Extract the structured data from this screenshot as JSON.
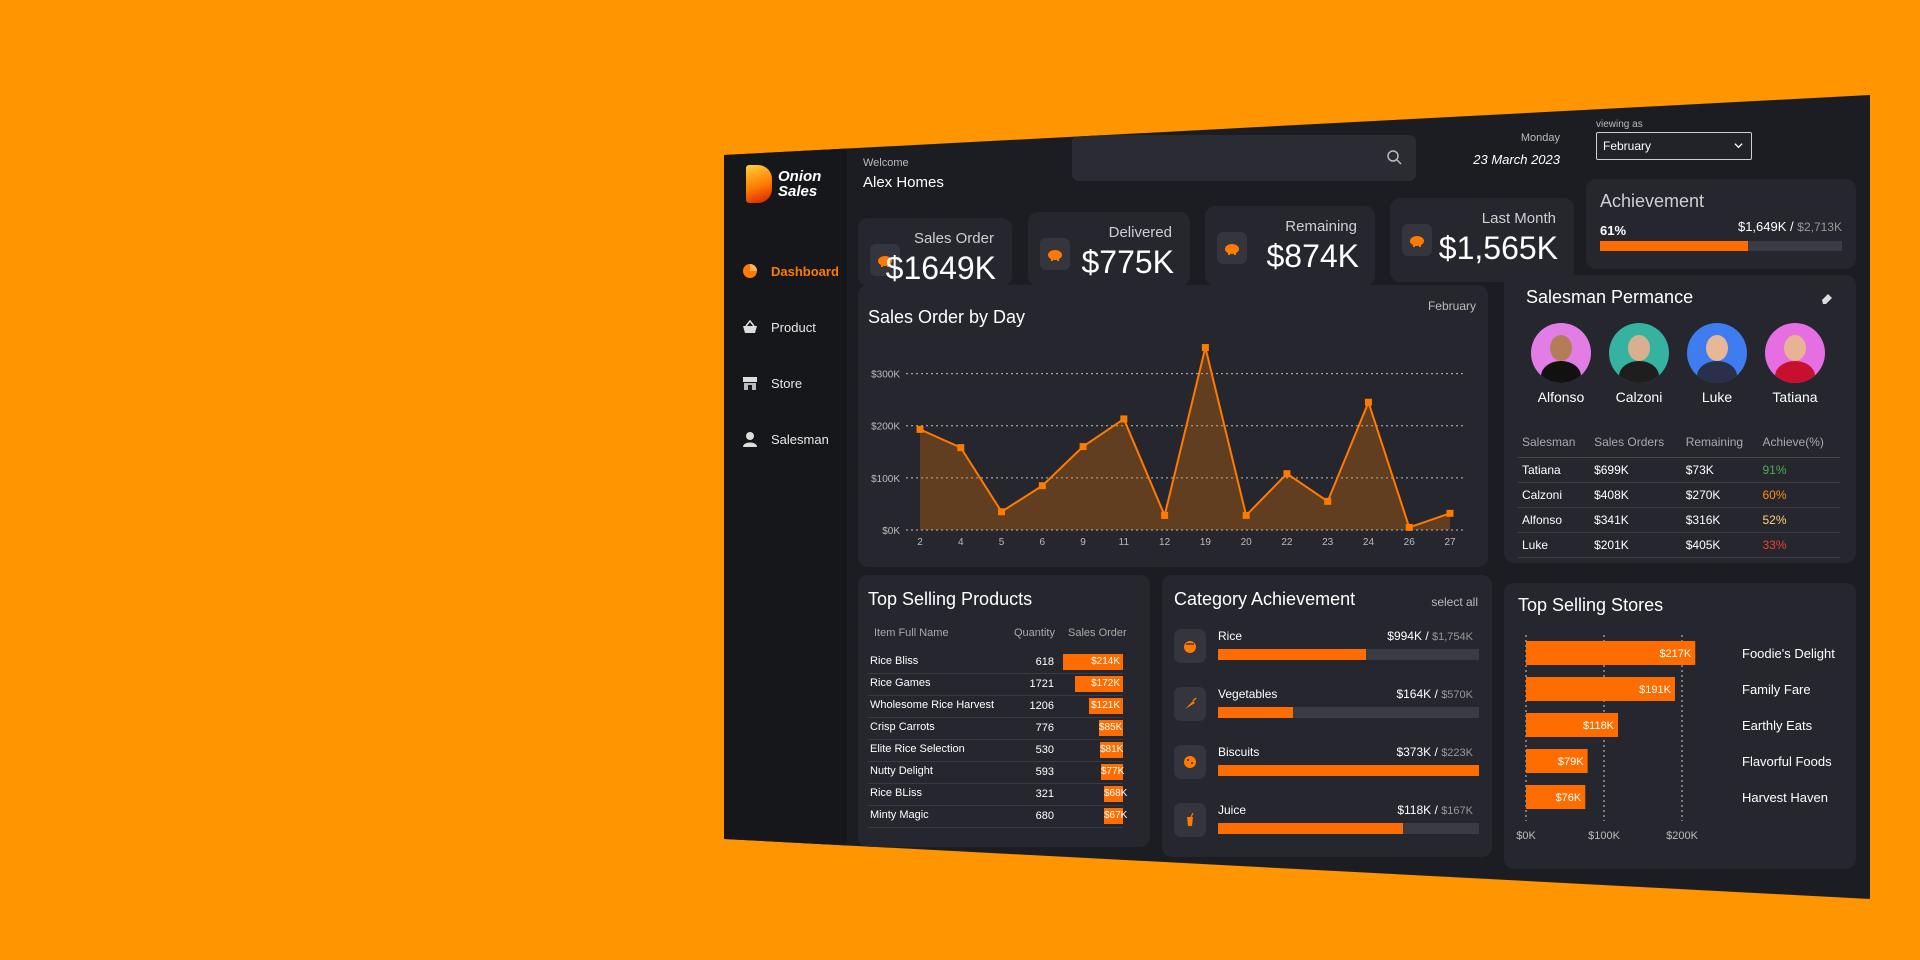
{
  "app": {
    "logo_line1": "Onion",
    "logo_line2": "Sales"
  },
  "nav": [
    {
      "label": "Dashboard",
      "icon": "pie-chart-icon"
    },
    {
      "label": "Product",
      "icon": "basket-icon"
    },
    {
      "label": "Store",
      "icon": "store-icon"
    },
    {
      "label": "Salesman",
      "icon": "person-icon"
    }
  ],
  "header": {
    "welcome": "Welcome",
    "user": "Alex Homes",
    "day": "Monday",
    "date": "23 March 2023",
    "viewing_label": "viewing as",
    "month": "February"
  },
  "kpis": [
    {
      "label": "Sales Order",
      "value": "$1649K"
    },
    {
      "label": "Delivered",
      "value": "$775K"
    },
    {
      "label": "Remaining",
      "value": "$874K"
    },
    {
      "label": "Last Month",
      "value": "$1,565K"
    }
  ],
  "achievement": {
    "title": "Achievement",
    "pct": "61%",
    "progress": 0.61,
    "value": "$1,649K",
    "sep": "/",
    "target": "$2,713K"
  },
  "sales_chart_card": {
    "title": "Sales Order by Day",
    "month": "February"
  },
  "chart_data": {
    "type": "area",
    "title": "Sales Order by Day",
    "x": [
      "2",
      "4",
      "5",
      "6",
      "9",
      "11",
      "12",
      "19",
      "20",
      "22",
      "23",
      "24",
      "26",
      "27"
    ],
    "values": [
      193,
      158,
      35,
      85,
      160,
      213,
      28,
      350,
      28,
      108,
      55,
      245,
      5,
      32
    ],
    "y_ticks": [
      "$0K",
      "$100K",
      "$200K",
      "$300K"
    ],
    "ylim": [
      0,
      300
    ],
    "grid": true,
    "color": "#ff7a00"
  },
  "salesman": {
    "title": "Salesman Permance",
    "people": [
      {
        "name": "Alfonso",
        "bg": "#e37de6",
        "skin": "#b47d5a",
        "shirt": "#111111"
      },
      {
        "name": "Calzoni",
        "bg": "#36b3a0",
        "skin": "#d9b08f",
        "shirt": "#1e1e1e"
      },
      {
        "name": "Luke",
        "bg": "#3e7cf0",
        "skin": "#e6b896",
        "shirt": "#2a2f4a"
      },
      {
        "name": "Tatiana",
        "bg": "#e56ee3",
        "skin": "#e8b394",
        "shirt": "#c8102e"
      }
    ],
    "headers": [
      "Salesman",
      "Sales Orders",
      "Remaining",
      "Achieve(%)"
    ],
    "rows": [
      {
        "name": "Tatiana",
        "orders": "$699K",
        "remaining": "$73K",
        "pct": "91%",
        "color": "#4caf50"
      },
      {
        "name": "Calzoni",
        "orders": "$408K",
        "remaining": "$270K",
        "pct": "60%",
        "color": "#ff8c1a"
      },
      {
        "name": "Alfonso",
        "orders": "$341K",
        "remaining": "$316K",
        "pct": "52%",
        "color": "#ffd27a"
      },
      {
        "name": "Luke",
        "orders": "$201K",
        "remaining": "$405K",
        "pct": "33%",
        "color": "#e8452c"
      }
    ]
  },
  "top_products": {
    "title": "Top Selling Products",
    "headers": [
      "Item Full Name",
      "Quantity",
      "Sales Order"
    ],
    "rows": [
      {
        "name": "Rice Bliss",
        "qty": "618",
        "sales": "$214K",
        "value": 214
      },
      {
        "name": "Rice Games",
        "qty": "1721",
        "sales": "$172K",
        "value": 172
      },
      {
        "name": "Wholesome Rice Harvest",
        "qty": "1206",
        "sales": "$121K",
        "value": 121
      },
      {
        "name": "Crisp Carrots",
        "qty": "776",
        "sales": "$85K",
        "value": 85
      },
      {
        "name": "Elite Rice Selection",
        "qty": "530",
        "sales": "$81K",
        "value": 81
      },
      {
        "name": "Nutty Delight",
        "qty": "593",
        "sales": "$77K",
        "value": 77
      },
      {
        "name": "Rice BLiss",
        "qty": "321",
        "sales": "$68K",
        "value": 68
      },
      {
        "name": "Minty Magic",
        "qty": "680",
        "sales": "$67K",
        "value": 67
      }
    ]
  },
  "category": {
    "title": "Category Achievement",
    "select_all": "select all",
    "rows": [
      {
        "name": "Rice",
        "value": "$994K",
        "sep": "/",
        "target": "$1,754K",
        "progress": 0.567,
        "icon": "rice-icon"
      },
      {
        "name": "Vegetables",
        "value": "$164K",
        "sep": "/",
        "target": "$570K",
        "progress": 0.288,
        "icon": "carrot-icon"
      },
      {
        "name": "Biscuits",
        "value": "$373K",
        "sep": "/",
        "target": "$223K",
        "progress": 1.0,
        "icon": "cookie-icon"
      },
      {
        "name": "Juice",
        "value": "$118K",
        "sep": "/",
        "target": "$167K",
        "progress": 0.707,
        "icon": "juice-icon"
      }
    ]
  },
  "stores": {
    "title": "Top Selling Stores",
    "ticks": [
      "$0K",
      "$100K",
      "$200K"
    ],
    "rows": [
      {
        "name": "Foodie's Delight",
        "label": "$217K",
        "value": 217
      },
      {
        "name": "Family Fare",
        "label": "$191K",
        "value": 191
      },
      {
        "name": "Earthly Eats",
        "label": "$118K",
        "value": 118
      },
      {
        "name": "Flavorful Foods",
        "label": "$79K",
        "value": 79
      },
      {
        "name": "Harvest Haven",
        "label": "$76K",
        "value": 76
      }
    ]
  }
}
